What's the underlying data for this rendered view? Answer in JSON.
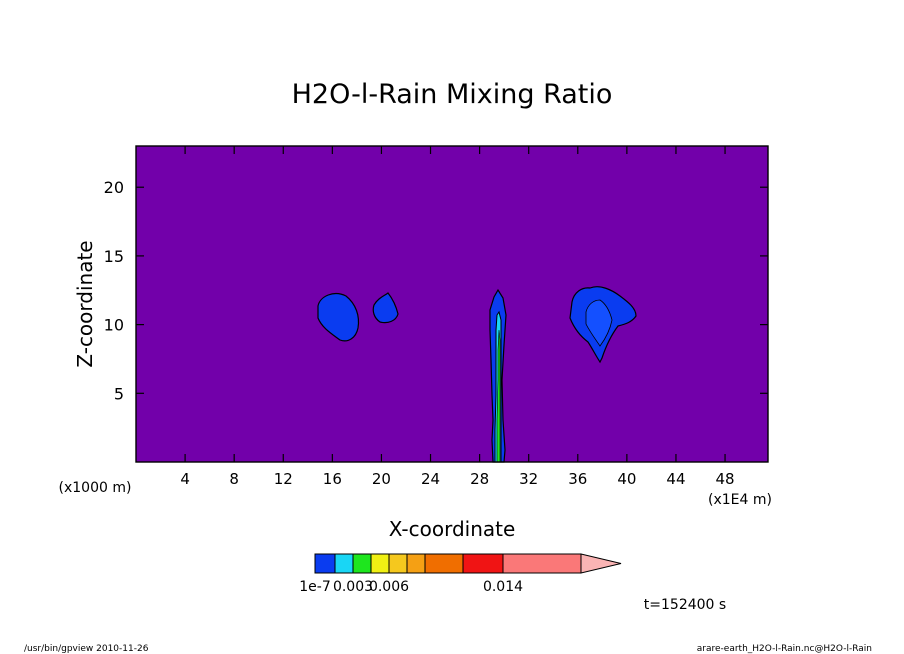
{
  "chart_data": {
    "type": "heatmap",
    "title": "H2O-l-Rain Mixing Ratio",
    "xlabel": "X-coordinate",
    "ylabel": "Z-coordinate",
    "x_unit_left": "(x1000 m)",
    "x_unit_right": "(x1E4 m)",
    "xlim": [
      0,
      51.5
    ],
    "ylim": [
      0,
      23
    ],
    "x_ticks": [
      4,
      8,
      12,
      16,
      20,
      24,
      28,
      32,
      36,
      40,
      44,
      48
    ],
    "y_ticks": [
      5,
      10,
      15,
      20
    ],
    "background_level": "0",
    "background_color": "#7200aa",
    "colorbar": {
      "colors": [
        "#0a3cf0",
        "#19d6f5",
        "#1ee61e",
        "#f0f014",
        "#f5c81e",
        "#f5a014",
        "#f06e00",
        "#f01414",
        "#fa7878",
        "#fab4b4"
      ],
      "labels": [
        {
          "value": "1e-7",
          "index": 0
        },
        {
          "value": "0.003",
          "index": 2
        },
        {
          "value": "0.006",
          "index": 4
        },
        {
          "value": "0.014",
          "index": 8
        }
      ]
    },
    "time_label": "t=152400 s",
    "features": [
      {
        "name": "cloud at x≈16.5, z≈10.5",
        "x": [
          14.8,
          18.2
        ],
        "z": [
          8.7,
          12.3
        ]
      },
      {
        "name": "cloud at x≈20.3, z≈11.1",
        "x": [
          19.4,
          21.2
        ],
        "z": [
          10.0,
          12.3
        ]
      },
      {
        "name": "rain shaft at x≈29.4",
        "x": [
          28.8,
          30.0
        ],
        "z": [
          0,
          12.5
        ]
      },
      {
        "name": "cloud at x≈37.8, z≈10.5",
        "x": [
          35.5,
          40.8
        ],
        "z": [
          7.3,
          12.8
        ]
      }
    ]
  },
  "footer": {
    "left": "/usr/bin/gpview   2010-11-26",
    "right": "arare-earth_H2O-l-Rain.nc@H2O-l-Rain"
  }
}
